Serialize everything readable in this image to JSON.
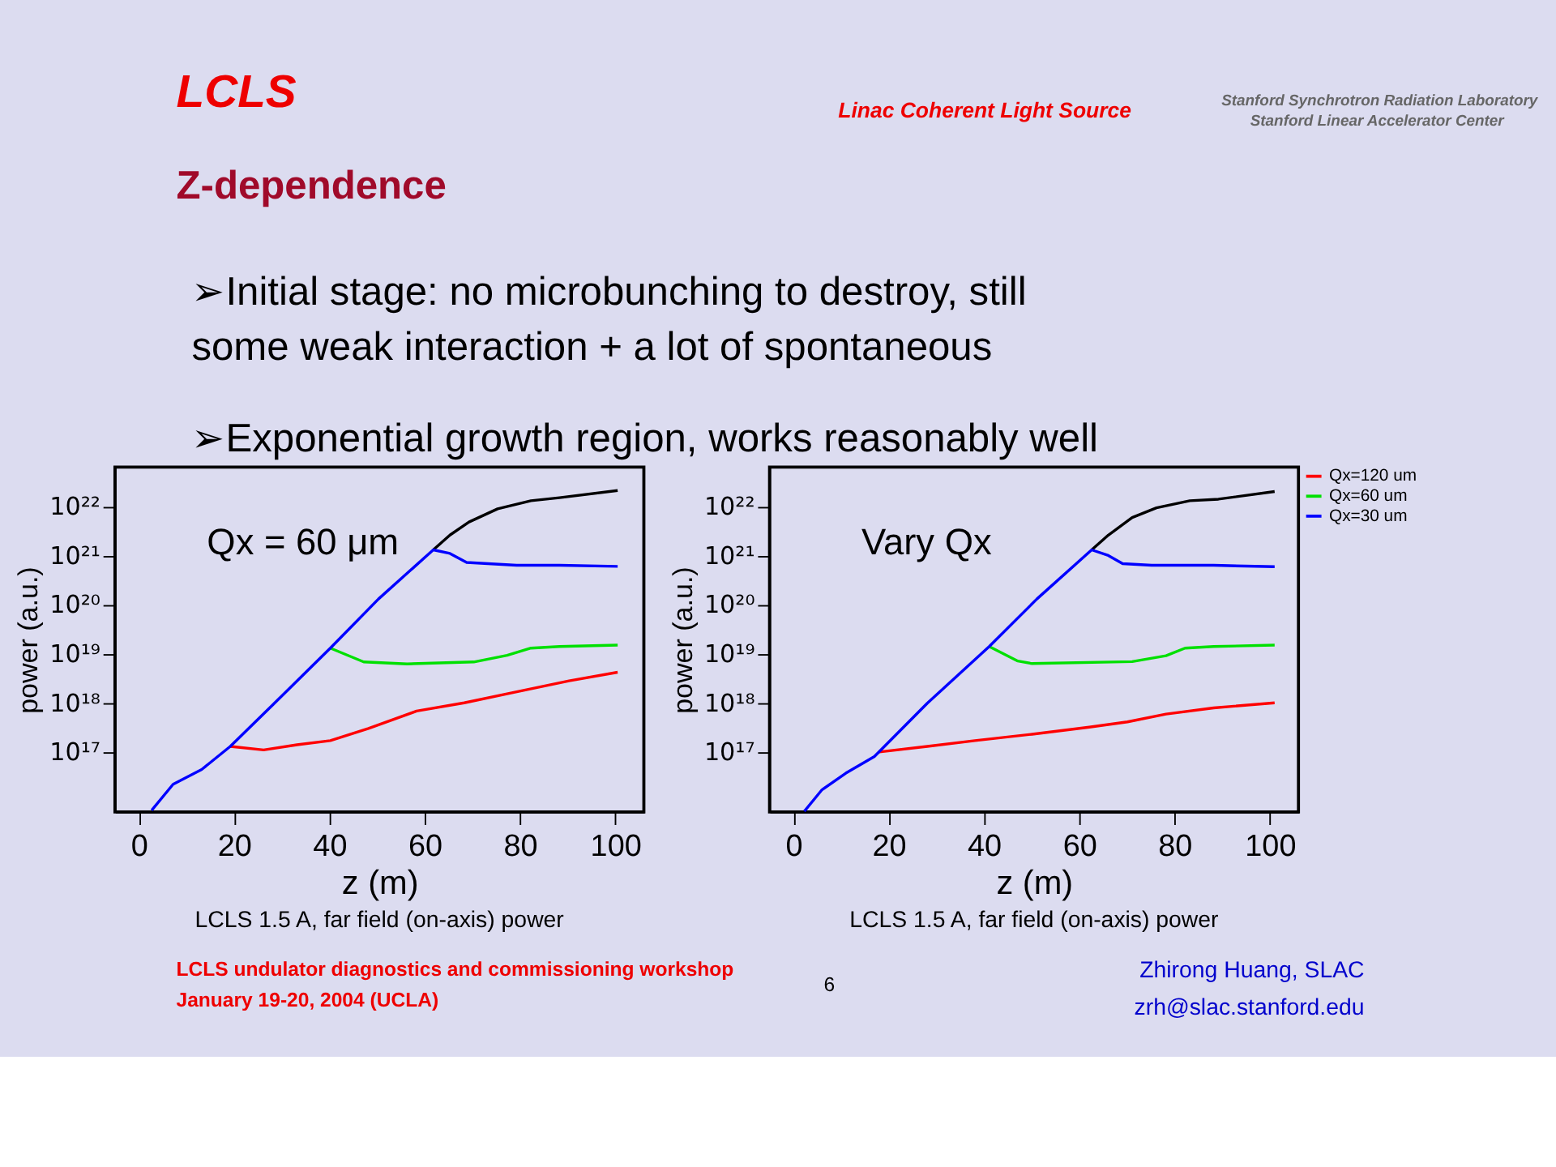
{
  "chart_data": [
    {
      "type": "other",
      "title": "Z-dependence",
      "annotations": [
        "LCLS",
        "Linac Coherent Light Source",
        "Stanford Synchrotron Radiation Laboratory",
        "Stanford Linear Accelerator Center",
        "➢Initial stage: no microbunching to destroy, still some weak interaction + a lot of spontaneous",
        "➢Exponential growth region, works reasonably well",
        "LCLS undulator diagnostics and commissioning workshop",
        "January 19-20, 2004 (UCLA)",
        "6",
        "Zhirong Huang, SLAC",
        "zrh@slac.stanford.edu"
      ]
    },
    {
      "type": "line",
      "xlabel": "z (m)",
      "ylabel": "power (a.u.)",
      "log": "y",
      "xlim": [
        -5,
        106
      ],
      "ylim": [
        6000000000000000.0,
        6.3e+22
      ],
      "xticks": [
        0,
        20,
        40,
        60,
        80,
        100
      ],
      "yticks": [
        {
          "value": 1e+17,
          "label": "10¹⁷"
        },
        {
          "value": 1e+18,
          "label": "10¹⁸"
        },
        {
          "value": 1e+19,
          "label": "10¹⁹"
        },
        {
          "value": 1e+20,
          "label": "10²⁰"
        },
        {
          "value": 1e+21,
          "label": "10²¹"
        },
        {
          "value": 1e+22,
          "label": "10²²"
        }
      ],
      "annotations": [
        "Qx = 60 μm",
        "LCLS 1.5 A, far field (on-axis) power"
      ],
      "series": [
        {
          "color": "#000000",
          "x": [
            61.8,
            65.3,
            69.3,
            75.3,
            82.3,
            88.3,
            100.5
          ],
          "values": [
            1.3e+21,
            2.6e+21,
            4.8e+21,
            8.9e+21,
            1.3e+22,
            1.5e+22,
            2.1e+22
          ]
        },
        {
          "color": "#ff0000",
          "x": [
            19.2,
            26.2,
            33.2,
            40.2,
            48.2,
            58.3,
            68.3,
            78.3,
            90.3,
            100.5
          ],
          "values": [
            1.3e+17,
            1.1e+17,
            1.4e+17,
            1.7e+17,
            3e+17,
            6.8e+17,
            1e+18,
            1.6e+18,
            2.8e+18,
            4.2e+18
          ]
        },
        {
          "color": "#00e000",
          "x": [
            40.2,
            47.2,
            56.3,
            70.3,
            77.3,
            82.3,
            88.3,
            100.5
          ],
          "values": [
            1.3e+19,
            6.8e+18,
            6.2e+18,
            6.8e+18,
            9.3e+18,
            1.3e+19,
            1.4e+19,
            1.5e+19
          ]
        },
        {
          "color": "#0000ff",
          "x": [
            2.7,
            7.2,
            13.2,
            19.2,
            28.2,
            40.2,
            50.3,
            61.8,
            65.3,
            68.8,
            79.3,
            88.3,
            100.5
          ],
          "values": [
            6500000000000000.0,
            2.2e+16,
            4.4e+16,
            1.3e+17,
            9.3e+17,
            1.3e+19,
            1.3e+20,
            1.3e+21,
            1.1e+21,
            7.2e+20,
            6.3e+20,
            6.3e+20,
            6e+20
          ]
        }
      ]
    },
    {
      "type": "line",
      "xlabel": "z (m)",
      "ylabel": "power (a.u.)",
      "log": "y",
      "xlim": [
        -5,
        106
      ],
      "ylim": [
        6000000000000000.0,
        6.3e+22
      ],
      "xticks": [
        0,
        20,
        40,
        60,
        80,
        100
      ],
      "yticks": [
        {
          "value": 1e+17,
          "label": "10¹⁷"
        },
        {
          "value": 1e+18,
          "label": "10¹⁸"
        },
        {
          "value": 1e+19,
          "label": "10¹⁹"
        },
        {
          "value": 1e+20,
          "label": "10²⁰"
        },
        {
          "value": 1e+21,
          "label": "10²¹"
        },
        {
          "value": 1e+22,
          "label": "10²²"
        }
      ],
      "annotations": [
        "Vary Qx",
        "LCLS 1.5 A, far field (on-axis) power"
      ],
      "legend": "top right",
      "series": [
        {
          "color": "#000000",
          "x": [
            62.6,
            66.1,
            71.1,
            76.2,
            83.2,
            89.2,
            101.0
          ],
          "values": [
            1.3e+21,
            2.6e+21,
            5.9e+21,
            9.3e+21,
            1.3e+22,
            1.4e+22,
            2e+22
          ]
        },
        {
          "name": "Qx=120 um",
          "color": "#ff0000",
          "x": [
            18.0,
            28.1,
            38.1,
            50.1,
            62.1,
            70.1,
            78.2,
            88.2,
            101.0
          ],
          "values": [
            1e+17,
            1.3e+17,
            1.7e+17,
            2.3e+17,
            3.2e+17,
            4.1e+17,
            5.9e+17,
            7.9e+17,
            1e+18
          ]
        },
        {
          "name": "Qx=60 um",
          "color": "#00e000",
          "x": [
            41.1,
            47.1,
            50.1,
            71.1,
            78.2,
            82.2,
            88.2,
            101.0
          ],
          "values": [
            1.4e+19,
            7.1e+18,
            6.3e+18,
            6.9e+18,
            9.1e+18,
            1.3e+19,
            1.4e+19,
            1.5e+19
          ]
        },
        {
          "name": "Qx=30 um",
          "color": "#0000ff",
          "x": [
            2.3,
            6.0,
            11.0,
            17.0,
            28.1,
            41.1,
            51.1,
            62.6,
            66.1,
            69.1,
            75.2,
            88.2,
            101.0
          ],
          "values": [
            6200000000000000.0,
            1.7e+16,
            3.7e+16,
            8.1e+16,
            9.8e+17,
            1.4e+19,
            1.3e+20,
            1.3e+21,
            1e+21,
            6.8e+20,
            6.3e+20,
            6.3e+20,
            5.9e+20
          ]
        }
      ]
    }
  ]
}
